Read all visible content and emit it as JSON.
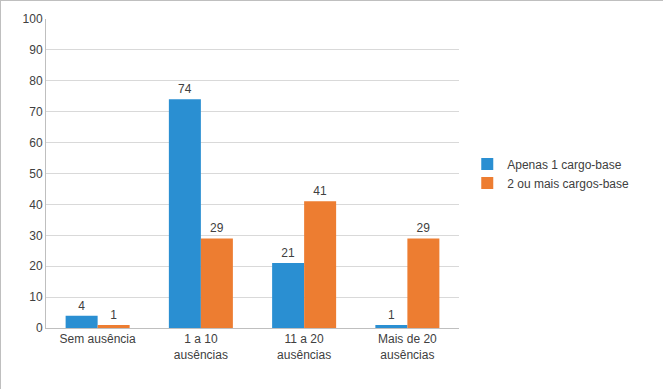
{
  "chart_data": {
    "type": "bar",
    "categories": [
      "Sem ausência",
      "1 a 10 ausências",
      "11 a 20 ausências",
      "Mais de 20 ausências"
    ],
    "series": [
      {
        "name": "Apenas 1 cargo-base",
        "color": "#2a8fd2",
        "values": [
          4,
          74,
          21,
          1
        ]
      },
      {
        "name": "2 ou mais cargos-base",
        "color": "#ed7d31",
        "values": [
          1,
          29,
          41,
          29
        ]
      }
    ],
    "ylim": [
      0,
      100
    ],
    "yticks": [
      0,
      10,
      20,
      30,
      40,
      50,
      60,
      70,
      80,
      90,
      100
    ],
    "grid": true,
    "legend": "right",
    "data_labels": true
  }
}
